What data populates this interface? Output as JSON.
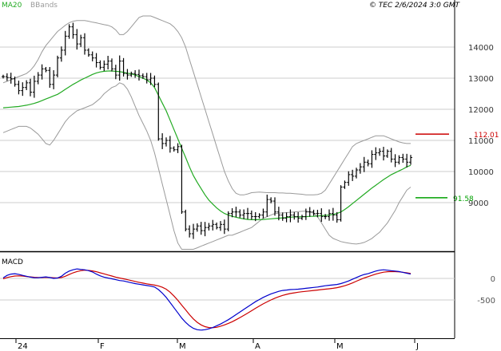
{
  "header": {
    "ma_label": "MA20",
    "bands_label": "BBands",
    "source_label": "© TEC 2/6/2024 3:0 GMT"
  },
  "levels": {
    "resistance": {
      "label": "112.01",
      "value": 11201,
      "color": "#cc0000"
    },
    "support": {
      "label": "91.58",
      "value": 9158,
      "color": "#00a000"
    }
  },
  "colors": {
    "ma": "#22aa22",
    "bands": "#9a9a9a",
    "price": "#000000",
    "macd_line": "#0000cc",
    "signal_line": "#cc0000",
    "grid": "#cccccc"
  },
  "chart_data": [
    {
      "type": "ohlc",
      "name": "price",
      "y_ticks": [
        "14000",
        "13000",
        "12000",
        "11000",
        "10000",
        "9000"
      ],
      "ylim": [
        7700,
        14900
      ],
      "x_labels": [
        "24",
        "F",
        "M",
        "A",
        "M",
        "J"
      ],
      "series": [
        {
          "name": "price",
          "values": [
            13050,
            13020,
            12980,
            12800,
            12600,
            12700,
            12850,
            12550,
            12900,
            13100,
            13300,
            13250,
            12800,
            13100,
            13650,
            13900,
            14350,
            14650,
            14400,
            14100,
            14300,
            13900,
            13750,
            13650,
            13500,
            13350,
            13450,
            13550,
            13300,
            13100,
            13550,
            13150,
            13100,
            13150,
            13120,
            13080,
            13050,
            12950,
            13000,
            12800,
            11050,
            10900,
            11000,
            10750,
            10700,
            10800,
            8700,
            8150,
            8000,
            8150,
            8250,
            8100,
            8200,
            8250,
            8300,
            8200,
            8300,
            8150,
            8650,
            8700,
            8700,
            8600,
            8650,
            8650,
            8550,
            8550,
            8600,
            8700,
            9100,
            9050,
            8700,
            8600,
            8500,
            8550,
            8600,
            8550,
            8500,
            8550,
            8700,
            8700,
            8650,
            8650,
            8550,
            8550,
            8650,
            8600,
            8450,
            9500,
            9650,
            9900,
            9850,
            10050,
            10150,
            10300,
            10250,
            10550,
            10600,
            10650,
            10500,
            10650,
            10400,
            10300,
            10450,
            10400,
            10300,
            10450
          ]
        },
        {
          "name": "MA20",
          "values": [
            12050,
            12060,
            12070,
            12080,
            12090,
            12110,
            12130,
            12160,
            12190,
            12230,
            12280,
            12330,
            12380,
            12430,
            12480,
            12560,
            12640,
            12720,
            12800,
            12870,
            12940,
            13000,
            13060,
            13120,
            13170,
            13200,
            13220,
            13230,
            13230,
            13220,
            13210,
            13190,
            13160,
            13140,
            13100,
            13050,
            13000,
            12940,
            12850,
            12700,
            12450,
            12200,
            11950,
            11650,
            11350,
            11050,
            10750,
            10450,
            10150,
            9870,
            9650,
            9450,
            9250,
            9080,
            8950,
            8830,
            8730,
            8650,
            8600,
            8560,
            8530,
            8500,
            8480,
            8460,
            8450,
            8450,
            8450,
            8460,
            8470,
            8480,
            8490,
            8500,
            8510,
            8520,
            8530,
            8540,
            8540,
            8550,
            8550,
            8560,
            8560,
            8570,
            8580,
            8590,
            8600,
            8620,
            8650,
            8700,
            8780,
            8870,
            8970,
            9070,
            9170,
            9270,
            9370,
            9470,
            9560,
            9650,
            9740,
            9820,
            9900,
            9960,
            10020,
            10080,
            10150,
            10200
          ]
        },
        {
          "name": "BBand upper",
          "values": [
            12850,
            12900,
            12950,
            13000,
            13050,
            13100,
            13150,
            13250,
            13400,
            13600,
            13850,
            14050,
            14200,
            14350,
            14500,
            14600,
            14700,
            14780,
            14830,
            14850,
            14850,
            14850,
            14830,
            14800,
            14780,
            14750,
            14720,
            14700,
            14650,
            14550,
            14400,
            14400,
            14500,
            14650,
            14800,
            14950,
            15000,
            15000,
            15000,
            14950,
            14900,
            14850,
            14800,
            14750,
            14650,
            14500,
            14300,
            14000,
            13600,
            13200,
            12800,
            12400,
            12000,
            11600,
            11200,
            10800,
            10400,
            10000,
            9700,
            9450,
            9300,
            9250,
            9250,
            9280,
            9320,
            9330,
            9340,
            9330,
            9320,
            9320,
            9320,
            9310,
            9310,
            9300,
            9300,
            9290,
            9280,
            9270,
            9250,
            9250,
            9250,
            9260,
            9300,
            9400,
            9600,
            9800,
            10000,
            10200,
            10400,
            10600,
            10800,
            10900,
            10950,
            11000,
            11050,
            11100,
            11150,
            11150,
            11150,
            11100,
            11050,
            11000,
            10950,
            10920,
            10900,
            10900
          ]
        },
        {
          "name": "BBand lower",
          "values": [
            11250,
            11300,
            11350,
            11400,
            11450,
            11450,
            11450,
            11400,
            11300,
            11200,
            11050,
            10900,
            10850,
            11000,
            11200,
            11400,
            11600,
            11750,
            11850,
            11950,
            12000,
            12050,
            12100,
            12150,
            12250,
            12350,
            12500,
            12600,
            12700,
            12750,
            12850,
            12800,
            12650,
            12400,
            12100,
            11800,
            11550,
            11300,
            11000,
            10600,
            10100,
            9600,
            9100,
            8600,
            8100,
            7700,
            7500,
            7500,
            7500,
            7500,
            7550,
            7600,
            7650,
            7700,
            7750,
            7800,
            7850,
            7900,
            7950,
            7950,
            8000,
            8050,
            8100,
            8150,
            8200,
            8300,
            8400,
            8500,
            8550,
            8600,
            8650,
            8660,
            8670,
            8680,
            8690,
            8700,
            8710,
            8720,
            8730,
            8710,
            8650,
            8550,
            8350,
            8150,
            7950,
            7850,
            7800,
            7750,
            7720,
            7700,
            7680,
            7670,
            7690,
            7720,
            7780,
            7850,
            7950,
            8050,
            8200,
            8350,
            8550,
            8750,
            9000,
            9200,
            9400,
            9500
          ]
        }
      ]
    },
    {
      "type": "line",
      "name": "MACD",
      "title": "MACD",
      "y_ticks": [
        "0",
        "-500"
      ],
      "ylim": [
        -1300,
        350
      ],
      "series": [
        {
          "name": "MACD",
          "values": [
            15,
            70,
            100,
            110,
            95,
            70,
            50,
            30,
            15,
            15,
            25,
            35,
            20,
            0,
            10,
            50,
            120,
            170,
            200,
            220,
            210,
            200,
            180,
            150,
            100,
            60,
            30,
            10,
            -10,
            -30,
            -50,
            -60,
            -80,
            -100,
            -120,
            -135,
            -150,
            -165,
            -180,
            -200,
            -260,
            -340,
            -440,
            -560,
            -680,
            -800,
            -920,
            -1020,
            -1100,
            -1160,
            -1190,
            -1200,
            -1190,
            -1170,
            -1140,
            -1100,
            -1060,
            -1010,
            -960,
            -900,
            -840,
            -780,
            -720,
            -660,
            -600,
            -540,
            -490,
            -440,
            -400,
            -360,
            -330,
            -300,
            -280,
            -270,
            -260,
            -255,
            -250,
            -240,
            -230,
            -220,
            -210,
            -200,
            -185,
            -170,
            -160,
            -150,
            -140,
            -120,
            -90,
            -60,
            -20,
            20,
            60,
            90,
            110,
            140,
            170,
            190,
            200,
            190,
            180,
            170,
            160,
            140,
            120,
            100
          ]
        },
        {
          "name": "Signal",
          "values": [
            -10,
            20,
            40,
            55,
            60,
            55,
            45,
            35,
            25,
            20,
            20,
            25,
            22,
            15,
            10,
            20,
            50,
            90,
            130,
            160,
            180,
            190,
            185,
            175,
            155,
            130,
            105,
            80,
            55,
            30,
            10,
            -10,
            -30,
            -50,
            -70,
            -90,
            -110,
            -125,
            -140,
            -155,
            -175,
            -205,
            -250,
            -320,
            -410,
            -510,
            -620,
            -730,
            -840,
            -940,
            -1020,
            -1080,
            -1120,
            -1140,
            -1145,
            -1135,
            -1110,
            -1080,
            -1045,
            -1005,
            -960,
            -910,
            -860,
            -805,
            -750,
            -695,
            -640,
            -590,
            -545,
            -500,
            -460,
            -425,
            -395,
            -370,
            -350,
            -335,
            -320,
            -310,
            -300,
            -290,
            -280,
            -270,
            -260,
            -250,
            -240,
            -230,
            -215,
            -195,
            -170,
            -140,
            -105,
            -65,
            -25,
            10,
            40,
            70,
            100,
            125,
            145,
            155,
            160,
            158,
            152,
            142,
            130,
            115
          ]
        }
      ]
    }
  ]
}
